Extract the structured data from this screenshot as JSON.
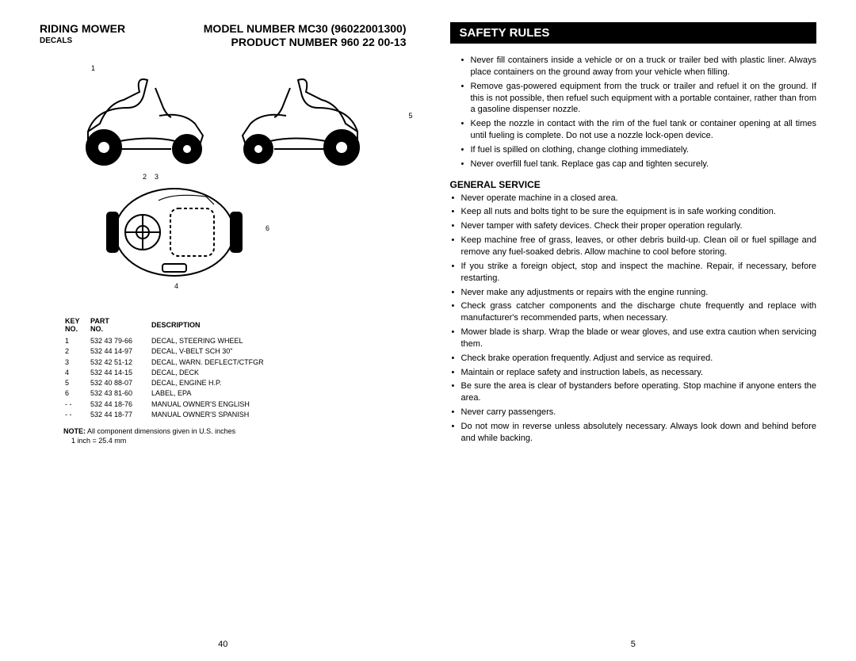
{
  "left": {
    "title_left": "RIDING MOWER",
    "title_right": "MODEL NUMBER MC30 (96022001300)",
    "subtitle_right": "PRODUCT NUMBER 960 22 00-13",
    "sub_left": "DECALS",
    "callouts": {
      "c1": "1",
      "c2": "2",
      "c3": "3",
      "c4": "4",
      "c5": "5",
      "c6": "6"
    },
    "table": {
      "head_key": "KEY NO.",
      "head_part": "PART NO.",
      "head_desc": "DESCRIPTION",
      "rows": [
        {
          "k": "1",
          "p": "532 43 79-66",
          "d": "DECAL, STEERING WHEEL"
        },
        {
          "k": "2",
          "p": "532 44 14-97",
          "d": "DECAL, V-BELT SCH 30\""
        },
        {
          "k": "3",
          "p": "532 42 51-12",
          "d": "DECAL, WARN. DEFLECT/CTFGR"
        },
        {
          "k": "4",
          "p": "532 44 14-15",
          "d": "DECAL, DECK"
        },
        {
          "k": "5",
          "p": "532 40 88-07",
          "d": "DECAL, ENGINE H.P."
        },
        {
          "k": "6",
          "p": "532 43 81-60",
          "d": "LABEL, EPA"
        },
        {
          "k": "- -",
          "p": "532 44 18-76",
          "d": "MANUAL OWNER'S ENGLISH"
        },
        {
          "k": "- -",
          "p": "532 44 18-77",
          "d": "MANUAL OWNER'S SPANISH"
        }
      ]
    },
    "note_bold": "NOTE:",
    "note_text": " All component dimensions given in U.S. inches",
    "note_text2": "1 inch = 25.4 mm",
    "pagenum": "40"
  },
  "right": {
    "bar": "SAFETY RULES",
    "bullets1": [
      "Never fill containers inside a vehicle or on a truck or trailer bed with plastic liner. Always place containers on the ground away from your vehicle when filling.",
      "Remove gas-powered equipment from the truck or trailer and refuel it on the ground. If this is not possible, then refuel such equipment with a portable container, rather than from a gasoline dispenser nozzle.",
      "Keep the nozzle in contact with the rim of the fuel tank or container opening at all times until fueling is complete. Do not use a nozzle lock-open device.",
      "If fuel is spilled on clothing, change clothing immediately.",
      "Never overfill fuel tank. Replace gas cap and tighten securely."
    ],
    "section": "GENERAL SERVICE",
    "bullets2": [
      "Never operate machine in a closed area.",
      "Keep all nuts and bolts tight to be sure the equipment is in safe working condition.",
      "Never tamper with safety devices. Check their proper operation regularly.",
      "Keep machine free of grass, leaves, or other debris build-up. Clean oil or fuel spillage and remove any fuel-soaked debris. Allow machine to cool before storing.",
      "If you strike a foreign object, stop and inspect the machine. Repair, if necessary, before restarting.",
      "Never make any adjustments or repairs with the engine running.",
      "Check grass catcher components and the discharge chute frequently and replace with manufacturer's recommended parts, when necessary.",
      "Mower blade is sharp. Wrap the blade or wear gloves, and use extra caution when servicing them.",
      "Check brake operation frequently. Adjust and service as required.",
      "Maintain or replace safety and instruction labels, as necessary.",
      "Be sure the area is clear of bystanders before operating. Stop machine if anyone enters the area.",
      "Never carry passengers.",
      "Do not mow in reverse unless absolutely necessary. Always look down and behind before and while backing."
    ],
    "pagenum": "5"
  },
  "svg": {
    "stroke": "#000000",
    "fill": "#ffffff",
    "fillblack": "#000000"
  }
}
